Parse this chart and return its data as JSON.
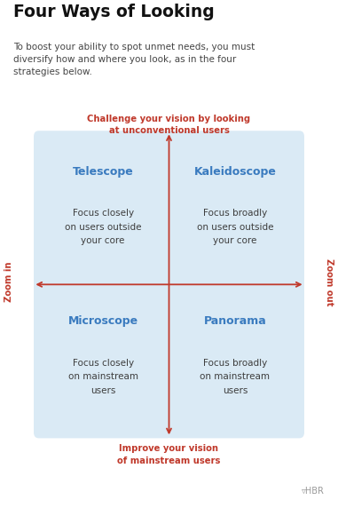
{
  "title": "Four Ways of Looking",
  "subtitle": "To boost your ability to spot unmet needs, you must\ndiversify how and where you look, as in the four\nstrategies below.",
  "bg_color": "#ffffff",
  "quad_bg_color": "#daeaf5",
  "quad_names": [
    "Telescope",
    "Kaleidoscope",
    "Microscope",
    "Panorama"
  ],
  "quad_descs": [
    "Focus closely\non users outside\nyour core",
    "Focus broadly\non users outside\nyour core",
    "Focus closely\non mainstream\nusers",
    "Focus broadly\non mainstream\nusers"
  ],
  "quad_name_color": "#3a7bbf",
  "quad_desc_color": "#3d3d3d",
  "arrow_color": "#c0392b",
  "axis_top_label": "Challenge your vision by looking\nat unconventional users",
  "axis_bottom_label": "Improve your vision\nof mainstream users",
  "axis_left_label": "Zoom in",
  "axis_right_label": "Zoom out",
  "label_color": "#c0392b",
  "hbr_color": "#999999"
}
